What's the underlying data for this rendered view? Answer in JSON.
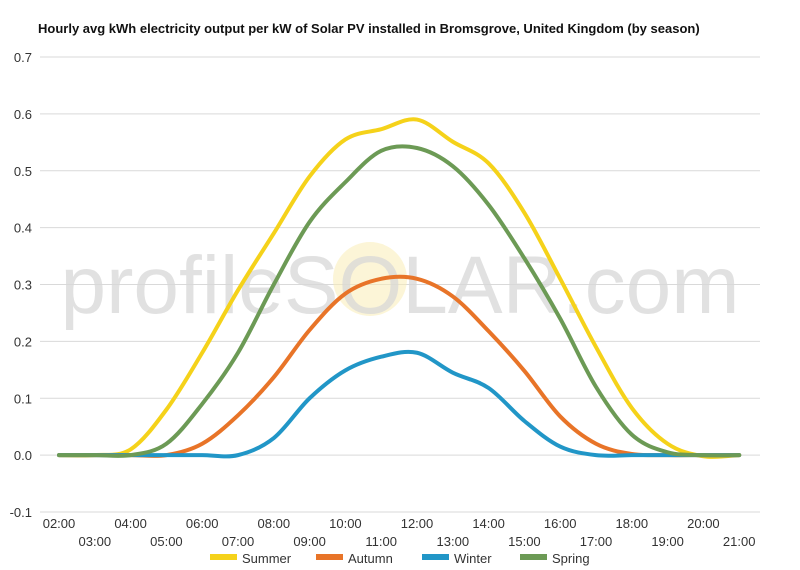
{
  "chart_data": {
    "type": "line",
    "title": "Hourly avg kWh electricity output per kW of Solar PV installed in Bromsgrove, United Kingdom (by season)",
    "xlabel": "",
    "ylabel": "",
    "watermark": "profileSOLAR.com",
    "x": [
      "02:00",
      "03:00",
      "04:00",
      "05:00",
      "06:00",
      "07:00",
      "08:00",
      "09:00",
      "10:00",
      "11:00",
      "12:00",
      "13:00",
      "14:00",
      "15:00",
      "16:00",
      "17:00",
      "18:00",
      "19:00",
      "20:00",
      "21:00"
    ],
    "ylim": [
      -0.1,
      0.7
    ],
    "yticks": [
      -0.1,
      0.0,
      0.1,
      0.2,
      0.3,
      0.4,
      0.5,
      0.6,
      0.7
    ],
    "ytick_labels": [
      "-0.1",
      "0.0",
      "0.1",
      "0.2",
      "0.3",
      "0.4",
      "0.5",
      "0.6",
      "0.7"
    ],
    "grid": true,
    "legend": "bottom",
    "series": [
      {
        "name": "Summer",
        "color": "#f5d21a",
        "values": [
          0.0,
          0.0,
          0.01,
          0.08,
          0.18,
          0.29,
          0.39,
          0.49,
          0.555,
          0.573,
          0.59,
          0.551,
          0.513,
          0.426,
          0.31,
          0.19,
          0.083,
          0.02,
          -0.002,
          0.0
        ]
      },
      {
        "name": "Autumn",
        "color": "#e87428",
        "values": [
          0.0,
          0.0,
          0.0,
          0.0,
          0.02,
          0.07,
          0.137,
          0.22,
          0.284,
          0.31,
          0.31,
          0.279,
          0.218,
          0.148,
          0.068,
          0.02,
          0.002,
          0.0,
          0.0,
          0.0
        ]
      },
      {
        "name": "Winter",
        "color": "#2196c7",
        "values": [
          0.0,
          0.0,
          0.0,
          0.0,
          0.0,
          0.0,
          0.03,
          0.1,
          0.149,
          0.173,
          0.18,
          0.145,
          0.118,
          0.06,
          0.015,
          0.0,
          0.0,
          0.0,
          0.0,
          0.0
        ]
      },
      {
        "name": "Spring",
        "color": "#6c9a55",
        "values": [
          0.0,
          0.0,
          0.0,
          0.02,
          0.09,
          0.18,
          0.3,
          0.41,
          0.48,
          0.535,
          0.54,
          0.508,
          0.44,
          0.346,
          0.24,
          0.12,
          0.036,
          0.005,
          0.0,
          0.0
        ]
      }
    ]
  }
}
